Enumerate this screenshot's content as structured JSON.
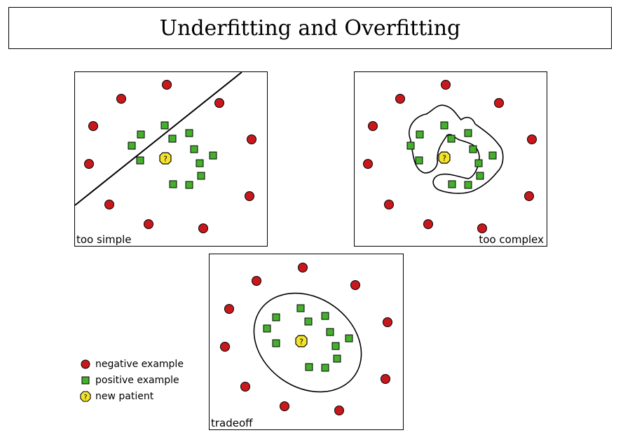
{
  "title": "Underfitting and Overfitting",
  "panels": {
    "simple": {
      "caption": "too simple"
    },
    "complex": {
      "caption": "too complex"
    },
    "tradeoff": {
      "caption": "tradeoff"
    }
  },
  "new_patient_glyph": "?",
  "legend": {
    "negative": "negative example",
    "positive": "positive example",
    "new": "new patient"
  },
  "colors": {
    "negative": "#c8181c",
    "positive": "#44b02c",
    "new": "#f3e32a",
    "outline": "#000000"
  }
}
